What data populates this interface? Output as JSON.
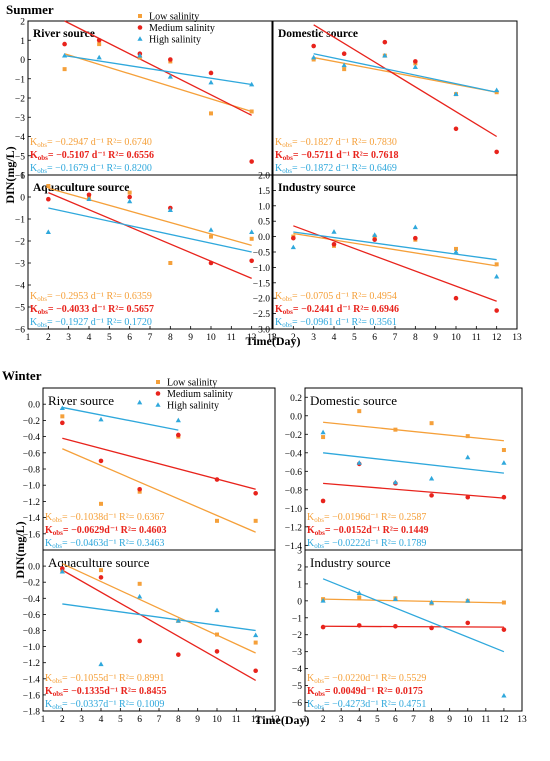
{
  "sections": [
    {
      "title": "Summer",
      "ylabel": "DIN(mg/L)",
      "xlabel": "Time(Day)"
    },
    {
      "title": "Winter",
      "ylabel": "DIN(mg/L)",
      "xlabel": "Time(Day)"
    }
  ],
  "colors": {
    "low": "#F5A03A",
    "medium": "#E8231C",
    "high": "#2FA8DC"
  },
  "legend": [
    "Low salinity",
    "Medium salinity",
    "High salinity"
  ],
  "chart_data": [
    {
      "type": "scatter",
      "panel": "summer-river",
      "title": "River source",
      "xlim": [
        1,
        13
      ],
      "ylim": [
        -6,
        2
      ],
      "xticks": [],
      "yticks": [
        2,
        1,
        0,
        -1,
        -2,
        -3,
        -4,
        -5,
        -6
      ],
      "xlabel": "",
      "ylabel": "",
      "title_style": "bold",
      "legend": true,
      "series": [
        {
          "key": "low",
          "x": [
            2.8,
            4.5,
            6.5,
            8,
            10,
            12
          ],
          "y": [
            -0.5,
            0.8,
            0.1,
            -0.1,
            -2.8,
            -2.7
          ]
        },
        {
          "key": "medium",
          "x": [
            2.8,
            4.5,
            6.5,
            8,
            10,
            12
          ],
          "y": [
            0.8,
            1.0,
            0.3,
            0.0,
            -0.7,
            -5.3
          ]
        },
        {
          "key": "high",
          "x": [
            2.8,
            4.5,
            6.5,
            8,
            10,
            12
          ],
          "y": [
            0.2,
            0.1,
            0.2,
            -0.9,
            -1.2,
            -1.3
          ]
        }
      ],
      "fits": [
        {
          "key": "low",
          "x": [
            2.8,
            12
          ],
          "y": [
            0.3,
            -2.7
          ]
        },
        {
          "key": "medium",
          "x": [
            2.8,
            12
          ],
          "y": [
            2.0,
            -2.9
          ]
        },
        {
          "key": "high",
          "x": [
            2.8,
            12
          ],
          "y": [
            0.2,
            -1.3
          ]
        }
      ],
      "annotations": [
        {
          "key": "low",
          "bold": false,
          "text": "K_obs= −0.2947 d⁻¹ R²= 0.6740"
        },
        {
          "key": "medium",
          "bold": true,
          "text": "K_obs= −0.5107 d⁻¹ R²= 0.6556"
        },
        {
          "key": "high",
          "bold": false,
          "text": "K_obs= −0.1679 d⁻¹ R²= 0.8200"
        }
      ]
    },
    {
      "type": "scatter",
      "panel": "summer-domestic",
      "title": "Domestic source",
      "xlim": [
        1,
        13
      ],
      "ylim": [
        -6,
        2
      ],
      "xticks": [],
      "yticks": [],
      "xlabel": "",
      "ylabel": "",
      "title_style": "bold",
      "legend": false,
      "series": [
        {
          "key": "low",
          "x": [
            3,
            4.5,
            6.5,
            8,
            10,
            12
          ],
          "y": [
            0.0,
            -0.5,
            0.2,
            -0.2,
            -1.8,
            -1.7
          ]
        },
        {
          "key": "medium",
          "x": [
            3,
            4.5,
            6.5,
            8,
            10,
            12
          ],
          "y": [
            0.7,
            0.3,
            0.9,
            -0.1,
            -3.6,
            -4.8
          ]
        },
        {
          "key": "high",
          "x": [
            3,
            4.5,
            6.5,
            8,
            10,
            12
          ],
          "y": [
            0.1,
            -0.3,
            0.2,
            -0.4,
            -1.8,
            -1.6
          ]
        }
      ],
      "fits": [
        {
          "key": "low",
          "x": [
            3,
            12
          ],
          "y": [
            0.1,
            -1.7
          ]
        },
        {
          "key": "medium",
          "x": [
            3,
            12
          ],
          "y": [
            1.8,
            -4.0
          ]
        },
        {
          "key": "high",
          "x": [
            3,
            12
          ],
          "y": [
            0.3,
            -1.7
          ]
        }
      ],
      "annotations": [
        {
          "key": "low",
          "bold": false,
          "text": "K_obs= −0.1827 d⁻¹ R²= 0.7830"
        },
        {
          "key": "medium",
          "bold": true,
          "text": "K_obs= −0.5711 d⁻¹ R²= 0.7618"
        },
        {
          "key": "high",
          "bold": false,
          "text": "K_obs= −0.1872 d⁻¹ R²= 0.6469"
        }
      ]
    },
    {
      "type": "scatter",
      "panel": "summer-aquaculture",
      "title": "Aquaculture source",
      "xlim": [
        1,
        13
      ],
      "ylim": [
        -6,
        1
      ],
      "xticks": [
        1,
        2,
        3,
        4,
        5,
        6,
        7,
        8,
        9,
        10,
        11,
        12,
        13
      ],
      "yticks": [
        1,
        0,
        -1,
        -2,
        -3,
        -4,
        -5,
        -6
      ],
      "xlabel": "",
      "ylabel": "",
      "title_style": "bold",
      "legend": false,
      "series": [
        {
          "key": "low",
          "x": [
            2,
            4,
            6,
            8,
            10,
            12
          ],
          "y": [
            0.5,
            0.0,
            0.2,
            -3.0,
            -1.8,
            -1.9
          ]
        },
        {
          "key": "medium",
          "x": [
            2,
            4,
            6,
            8,
            10,
            12
          ],
          "y": [
            -0.1,
            0.1,
            0.0,
            -0.5,
            -3.0,
            -2.9
          ]
        },
        {
          "key": "high",
          "x": [
            2,
            4,
            6,
            8,
            10,
            12
          ],
          "y": [
            -1.6,
            -0.1,
            -0.2,
            -0.6,
            -1.5,
            -1.6
          ]
        }
      ],
      "fits": [
        {
          "key": "low",
          "x": [
            2,
            12
          ],
          "y": [
            0.4,
            -2.2
          ]
        },
        {
          "key": "medium",
          "x": [
            2,
            12
          ],
          "y": [
            0.2,
            -3.7
          ]
        },
        {
          "key": "high",
          "x": [
            2,
            12
          ],
          "y": [
            -0.5,
            -2.5
          ]
        }
      ],
      "annotations": [
        {
          "key": "low",
          "bold": false,
          "text": "K_obs= −0.2953 d⁻¹ R²= 0.6359"
        },
        {
          "key": "medium",
          "bold": true,
          "text": "K_obs= −0.4033 d⁻¹ R²= 0.5657"
        },
        {
          "key": "high",
          "bold": false,
          "text": "K_obs= −0.1927 d⁻¹ R²= 0.1720"
        }
      ]
    },
    {
      "type": "scatter",
      "panel": "summer-industry",
      "title": "Industry source",
      "xlim": [
        1,
        13
      ],
      "ylim": [
        -3,
        2
      ],
      "xticks": [
        1,
        2,
        3,
        4,
        5,
        6,
        7,
        8,
        9,
        10,
        11,
        12,
        13
      ],
      "yticks": [
        2.0,
        1.5,
        1.0,
        0.5,
        0.0,
        -0.5,
        -1.0,
        -1.5,
        -2.0,
        -2.5,
        -3.0
      ],
      "xlabel": "",
      "ylabel": "",
      "title_style": "bold",
      "legend": false,
      "series": [
        {
          "key": "low",
          "x": [
            2,
            4,
            6,
            8,
            10,
            12
          ],
          "y": [
            0.0,
            -0.3,
            0.0,
            -0.1,
            -0.4,
            -0.9
          ]
        },
        {
          "key": "medium",
          "x": [
            2,
            4,
            6,
            8,
            10,
            12
          ],
          "y": [
            -0.05,
            -0.25,
            -0.1,
            -0.05,
            -2.0,
            -2.4
          ]
        },
        {
          "key": "high",
          "x": [
            2,
            4,
            6,
            8,
            10,
            12
          ],
          "y": [
            -0.35,
            0.15,
            0.05,
            0.3,
            -0.5,
            -1.3
          ]
        }
      ],
      "fits": [
        {
          "key": "low",
          "x": [
            2,
            12
          ],
          "y": [
            0.1,
            -0.95
          ]
        },
        {
          "key": "medium",
          "x": [
            2,
            12
          ],
          "y": [
            0.35,
            -2.1
          ]
        },
        {
          "key": "high",
          "x": [
            2,
            12
          ],
          "y": [
            0.15,
            -0.75
          ]
        }
      ],
      "annotations": [
        {
          "key": "low",
          "bold": false,
          "text": "K_obs= −0.0705 d⁻¹ R²= 0.4954"
        },
        {
          "key": "medium",
          "bold": true,
          "text": "K_obs= −0.2441 d⁻¹ R²= 0.6946"
        },
        {
          "key": "high",
          "bold": false,
          "text": "K_obs= −0.0961 d⁻¹ R²= 0.3561"
        }
      ]
    },
    {
      "type": "scatter",
      "panel": "winter-river",
      "title": "River source",
      "xlim": [
        1,
        13
      ],
      "ylim": [
        -1.8,
        0.2
      ],
      "xticks": [],
      "yticks": [
        0.0,
        -0.2,
        -0.4,
        -0.6,
        -0.8,
        -1.0,
        -1.2,
        -1.4,
        -1.6
      ],
      "xlabel": "",
      "ylabel": "",
      "title_style": "normal",
      "legend": true,
      "series": [
        {
          "key": "low",
          "x": [
            2,
            4,
            6,
            8,
            10,
            12
          ],
          "y": [
            -0.15,
            -1.23,
            -1.08,
            -0.4,
            -1.44,
            -1.44
          ]
        },
        {
          "key": "medium",
          "x": [
            2,
            4,
            6,
            8,
            10,
            12
          ],
          "y": [
            -0.23,
            -0.7,
            -1.05,
            -0.38,
            -0.93,
            -1.1
          ]
        },
        {
          "key": "high",
          "x": [
            2,
            4,
            6,
            8,
            10,
            12
          ],
          "y": [
            -0.05,
            -0.19,
            0.02,
            -0.2,
            null,
            null
          ]
        }
      ],
      "fits": [
        {
          "key": "low",
          "x": [
            2,
            12
          ],
          "y": [
            -0.55,
            -1.58
          ]
        },
        {
          "key": "medium",
          "x": [
            2,
            12
          ],
          "y": [
            -0.42,
            -1.05
          ]
        },
        {
          "key": "high",
          "x": [
            2,
            8
          ],
          "y": [
            -0.04,
            -0.32
          ]
        }
      ],
      "annotations": [
        {
          "key": "low",
          "bold": false,
          "text": "K_obs= −0.1038d⁻¹ R²= 0.6367"
        },
        {
          "key": "medium",
          "bold": true,
          "text": "K_obs= −0.0629d⁻¹ R²= 0.4603"
        },
        {
          "key": "high",
          "bold": false,
          "text": "K_obs= −0.0463d⁻¹ R²= 0.3463"
        }
      ]
    },
    {
      "type": "scatter",
      "panel": "winter-domestic",
      "title": "Domestic source",
      "xlim": [
        1,
        13
      ],
      "ylim": [
        -1.45,
        0.3
      ],
      "xticks": [],
      "yticks": [
        0.2,
        0.0,
        -0.2,
        -0.4,
        -0.6,
        -0.8,
        -1.0,
        -1.2,
        -1.4
      ],
      "xlabel": "",
      "ylabel": "",
      "title_style": "normal",
      "legend": false,
      "series": [
        {
          "key": "low",
          "x": [
            2,
            4,
            6,
            8,
            10,
            12
          ],
          "y": [
            -0.23,
            0.05,
            -0.15,
            -0.08,
            -0.22,
            -0.37
          ]
        },
        {
          "key": "medium",
          "x": [
            2,
            4,
            6,
            8,
            10,
            12
          ],
          "y": [
            -0.92,
            -0.52,
            -0.73,
            -0.86,
            -0.88,
            -0.88
          ]
        },
        {
          "key": "high",
          "x": [
            2,
            4,
            6,
            8,
            10,
            12
          ],
          "y": [
            -0.18,
            -0.51,
            -0.72,
            -0.68,
            -0.45,
            -0.51
          ]
        }
      ],
      "fits": [
        {
          "key": "low",
          "x": [
            2,
            12
          ],
          "y": [
            -0.07,
            -0.27
          ]
        },
        {
          "key": "medium",
          "x": [
            2,
            12
          ],
          "y": [
            -0.73,
            -0.89
          ]
        },
        {
          "key": "high",
          "x": [
            2,
            12
          ],
          "y": [
            -0.4,
            -0.62
          ]
        }
      ],
      "annotations": [
        {
          "key": "low",
          "bold": false,
          "text": "K_obs= −0.0196d⁻¹ R²= 0.2587"
        },
        {
          "key": "medium",
          "bold": true,
          "text": "K_obs= −0.0152d⁻¹ R²= 0.1449"
        },
        {
          "key": "high",
          "bold": false,
          "text": "K_obs= −0.0222d⁻¹ R²= 0.1789"
        }
      ]
    },
    {
      "type": "scatter",
      "panel": "winter-aquaculture",
      "title": "Aquaculture source",
      "xlim": [
        1,
        13
      ],
      "ylim": [
        -1.8,
        0.2
      ],
      "xticks": [
        1,
        2,
        3,
        4,
        5,
        6,
        7,
        8,
        9,
        10,
        11,
        12,
        13
      ],
      "yticks": [
        0.0,
        -0.2,
        -0.4,
        -0.6,
        -0.8,
        -1.0,
        -1.2,
        -1.4,
        -1.6,
        -1.8
      ],
      "xlabel": "",
      "ylabel": "",
      "title_style": "normal",
      "legend": false,
      "series": [
        {
          "key": "low",
          "x": [
            2,
            4,
            6,
            8,
            10,
            12
          ],
          "y": [
            -0.05,
            -0.05,
            -0.22,
            -0.68,
            -0.85,
            -0.95
          ]
        },
        {
          "key": "medium",
          "x": [
            2,
            4,
            6,
            8,
            10,
            12
          ],
          "y": [
            -0.03,
            -0.14,
            -0.93,
            -1.1,
            -1.06,
            -1.3
          ]
        },
        {
          "key": "high",
          "x": [
            2,
            4,
            6,
            8,
            10,
            12
          ],
          "y": [
            -0.07,
            -1.22,
            -0.38,
            -0.68,
            -0.55,
            -0.86
          ]
        }
      ],
      "fits": [
        {
          "key": "low",
          "x": [
            2,
            12
          ],
          "y": [
            0.03,
            -1.08
          ]
        },
        {
          "key": "medium",
          "x": [
            2,
            12
          ],
          "y": [
            -0.05,
            -1.42
          ]
        },
        {
          "key": "high",
          "x": [
            2,
            12
          ],
          "y": [
            -0.47,
            -0.8
          ]
        }
      ],
      "annotations": [
        {
          "key": "low",
          "bold": false,
          "text": "K_obs= −0.1055d⁻¹ R²= 0.8991"
        },
        {
          "key": "medium",
          "bold": true,
          "text": "K_obs= −0.1335d⁻¹ R²= 0.8455"
        },
        {
          "key": "high",
          "bold": false,
          "text": "K_obs= −0.0337d⁻¹ R²= 0.1009"
        }
      ]
    },
    {
      "type": "scatter",
      "panel": "winter-industry",
      "title": "Industry source",
      "xlim": [
        1,
        13
      ],
      "ylim": [
        -6.5,
        3
      ],
      "xticks": [
        1,
        2,
        3,
        4,
        5,
        6,
        7,
        8,
        9,
        10,
        11,
        12,
        13
      ],
      "yticks": [
        3,
        2,
        1,
        0,
        -1,
        -2,
        -3,
        -4,
        -5,
        -6
      ],
      "xlabel": "",
      "ylabel": "",
      "title_style": "normal",
      "legend": false,
      "series": [
        {
          "key": "low",
          "x": [
            2,
            4,
            6,
            8,
            10,
            12
          ],
          "y": [
            0.1,
            0.2,
            0.15,
            -0.15,
            0.0,
            -0.1
          ]
        },
        {
          "key": "medium",
          "x": [
            2,
            4,
            6,
            8,
            10,
            12
          ],
          "y": [
            -1.55,
            -1.45,
            -1.5,
            -1.6,
            -1.3,
            -1.7
          ]
        },
        {
          "key": "high",
          "x": [
            2,
            4,
            6,
            8,
            10,
            12
          ],
          "y": [
            0.0,
            0.45,
            0.1,
            -0.1,
            0.0,
            -5.6
          ]
        }
      ],
      "fits": [
        {
          "key": "low",
          "x": [
            2,
            12
          ],
          "y": [
            0.1,
            -0.12
          ]
        },
        {
          "key": "medium",
          "x": [
            2,
            12
          ],
          "y": [
            -1.5,
            -1.55
          ]
        },
        {
          "key": "high",
          "x": [
            2,
            12
          ],
          "y": [
            1.3,
            -3.0
          ]
        }
      ],
      "annotations": [
        {
          "key": "low",
          "bold": false,
          "text": "K_obs= −0.0220d⁻¹ R²= 0.5529"
        },
        {
          "key": "medium",
          "bold": true,
          "text": "K_obs= 0.0049d⁻¹ R²= 0.0175"
        },
        {
          "key": "high",
          "bold": false,
          "text": "K_obs= −0.4273d⁻¹ R²= 0.4751"
        }
      ]
    }
  ]
}
